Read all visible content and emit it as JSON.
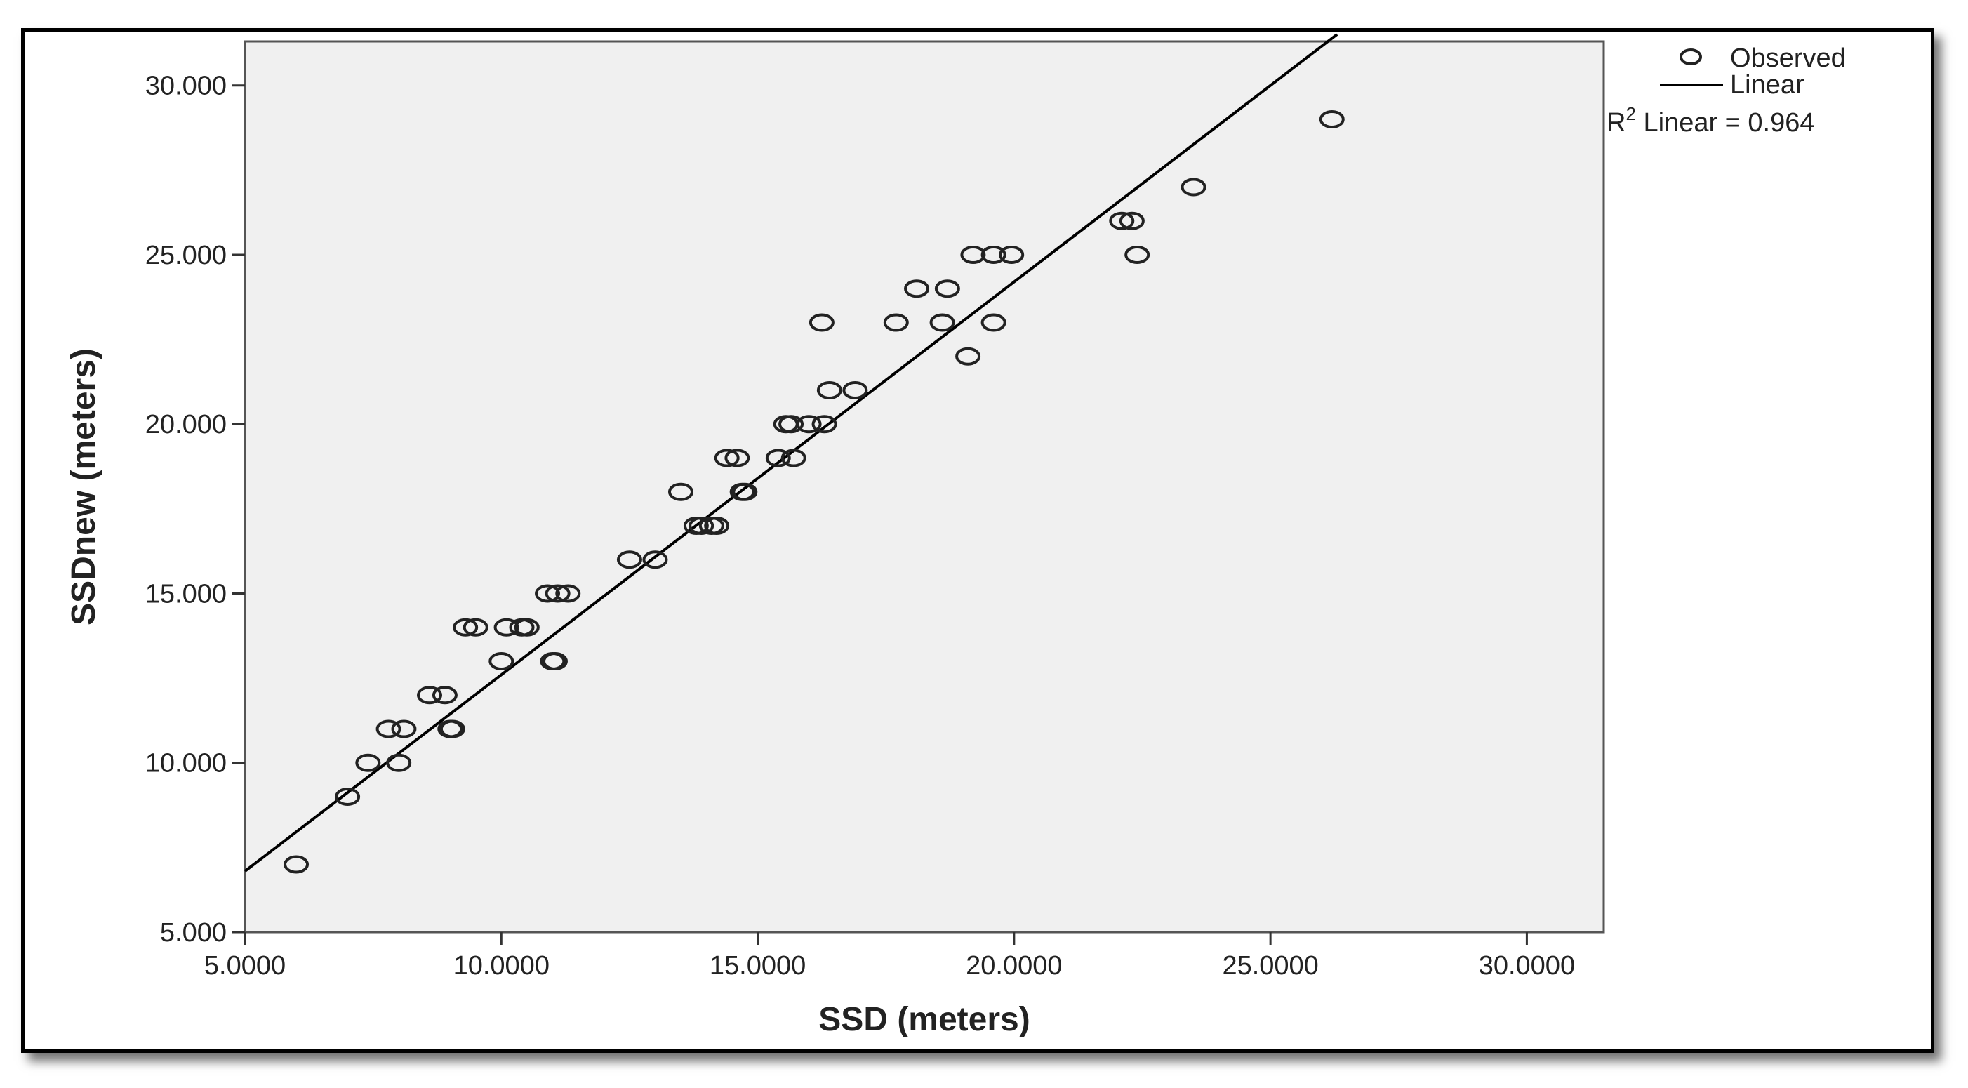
{
  "chart_data": {
    "type": "scatter",
    "xlabel": "SSD (meters)",
    "ylabel": "SSDnew (meters)",
    "xlim": [
      5,
      31.5
    ],
    "ylim": [
      5,
      31.3
    ],
    "x_ticks": [
      5,
      10,
      15,
      20,
      25,
      30
    ],
    "x_tick_labels": [
      "5.0000",
      "10.0000",
      "15.0000",
      "20.0000",
      "25.0000",
      "30.0000"
    ],
    "y_ticks": [
      5,
      10,
      15,
      20,
      25,
      30
    ],
    "y_tick_labels": [
      "5.000",
      "10.000",
      "15.000",
      "20.000",
      "25.000",
      "30.000"
    ],
    "grid": false,
    "legend": {
      "position": "top-right",
      "observed_label": "Observed",
      "linear_label": "Linear",
      "r2_prefix": "R",
      "r2_sup": "2",
      "r2_text": " Linear = 0.964"
    },
    "colors": {
      "plot_bg": "#f0f0f0",
      "marker": "#222222",
      "line": "#000000"
    },
    "fit_line": {
      "intercept": 1.0,
      "slope": 1.16,
      "x_range": [
        5,
        26.3
      ]
    },
    "series": [
      {
        "name": "Observed",
        "points": [
          [
            6.0,
            7
          ],
          [
            7.0,
            9
          ],
          [
            7.4,
            10
          ],
          [
            8.0,
            10
          ],
          [
            7.8,
            11
          ],
          [
            8.1,
            11
          ],
          [
            9.0,
            11
          ],
          [
            9.05,
            11
          ],
          [
            8.6,
            12
          ],
          [
            8.9,
            12
          ],
          [
            10.0,
            13
          ],
          [
            11.0,
            13
          ],
          [
            11.05,
            13
          ],
          [
            9.3,
            14
          ],
          [
            9.5,
            14
          ],
          [
            10.1,
            14
          ],
          [
            10.4,
            14
          ],
          [
            10.5,
            14
          ],
          [
            10.9,
            15
          ],
          [
            11.1,
            15
          ],
          [
            11.3,
            15
          ],
          [
            12.5,
            16
          ],
          [
            13.0,
            16
          ],
          [
            13.8,
            17
          ],
          [
            13.9,
            17
          ],
          [
            14.1,
            17
          ],
          [
            14.2,
            17
          ],
          [
            13.5,
            18
          ],
          [
            14.7,
            18
          ],
          [
            14.75,
            18
          ],
          [
            14.4,
            19
          ],
          [
            14.6,
            19
          ],
          [
            15.4,
            19
          ],
          [
            15.7,
            19
          ],
          [
            15.55,
            20
          ],
          [
            15.65,
            20
          ],
          [
            16.0,
            20
          ],
          [
            16.3,
            20
          ],
          [
            16.4,
            21
          ],
          [
            16.9,
            21
          ],
          [
            19.1,
            22
          ],
          [
            16.25,
            23
          ],
          [
            17.7,
            23
          ],
          [
            18.6,
            23
          ],
          [
            19.6,
            23
          ],
          [
            18.1,
            24
          ],
          [
            18.7,
            24
          ],
          [
            19.2,
            25
          ],
          [
            19.6,
            25
          ],
          [
            19.95,
            25
          ],
          [
            22.4,
            25
          ],
          [
            22.1,
            26
          ],
          [
            22.3,
            26
          ],
          [
            23.5,
            27
          ],
          [
            26.2,
            29
          ]
        ]
      }
    ]
  }
}
